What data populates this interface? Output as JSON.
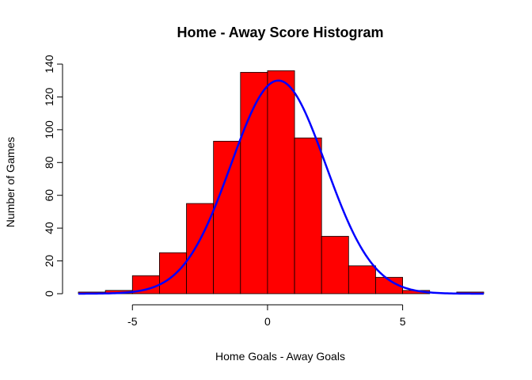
{
  "chart_data": {
    "type": "bar",
    "title": "Home - Away Score Histogram",
    "xlabel": "Home Goals - Away Goals",
    "ylabel": "Number of Games",
    "bins": [
      {
        "from": -7,
        "to": -6,
        "count": 1
      },
      {
        "from": -6,
        "to": -5,
        "count": 2
      },
      {
        "from": -5,
        "to": -4,
        "count": 11
      },
      {
        "from": -4,
        "to": -3,
        "count": 25
      },
      {
        "from": -3,
        "to": -2,
        "count": 55
      },
      {
        "from": -2,
        "to": -1,
        "count": 93
      },
      {
        "from": -1,
        "to": 0,
        "count": 135
      },
      {
        "from": 0,
        "to": 1,
        "count": 136
      },
      {
        "from": 1,
        "to": 2,
        "count": 95
      },
      {
        "from": 2,
        "to": 3,
        "count": 35
      },
      {
        "from": 3,
        "to": 4,
        "count": 17
      },
      {
        "from": 4,
        "to": 5,
        "count": 10
      },
      {
        "from": 5,
        "to": 6,
        "count": 2
      },
      {
        "from": 6,
        "to": 7,
        "count": 0
      },
      {
        "from": 7,
        "to": 8,
        "count": 1
      }
    ],
    "curve": {
      "type": "normal-density-scaled",
      "peak": 130,
      "mean": 0.4,
      "sd": 1.75,
      "x_range": [
        -7,
        8
      ],
      "color": "#0000ff"
    },
    "bar_color": "#ff0000",
    "xlim": [
      -7,
      8
    ],
    "ylim": [
      0,
      140
    ],
    "xticks": [
      -5,
      0,
      5
    ],
    "yticks": [
      0,
      20,
      40,
      60,
      80,
      100,
      120,
      140
    ],
    "grid": false,
    "legend": "none"
  }
}
